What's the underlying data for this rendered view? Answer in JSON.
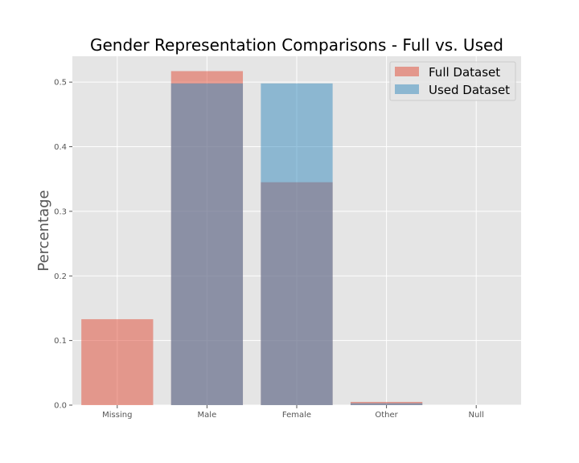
{
  "chart_data": {
    "type": "bar",
    "title": "Gender Representation Comparisons - Full vs. Used",
    "xlabel": "",
    "ylabel": "Percentage",
    "categories": [
      "Missing",
      "Male",
      "Female",
      "Other",
      "Null"
    ],
    "ylim": [
      0,
      0.54
    ],
    "yticks": [
      0.0,
      0.1,
      0.2,
      0.3,
      0.4,
      0.5
    ],
    "ytick_labels": [
      "0.0",
      "0.1",
      "0.2",
      "0.3",
      "0.4",
      "0.5"
    ],
    "grid": true,
    "legend_position": "top-right",
    "overlay": true,
    "series": [
      {
        "name": "Full Dataset",
        "color": "#E24A33",
        "opacity": 0.5,
        "values": [
          0.133,
          0.517,
          0.345,
          0.005,
          0.0
        ]
      },
      {
        "name": "Used Dataset",
        "color": "#348ABD",
        "opacity": 0.5,
        "values": [
          0.0,
          0.498,
          0.498,
          0.003,
          0.0
        ]
      }
    ]
  }
}
